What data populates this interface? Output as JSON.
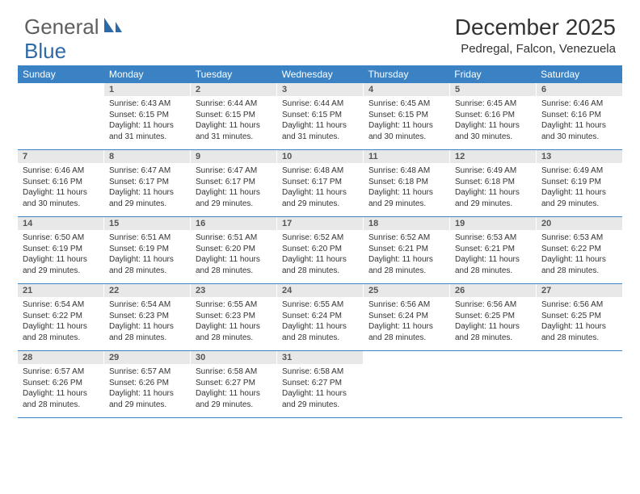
{
  "logo": {
    "text1": "General",
    "text2": "Blue",
    "color_gray": "#5f5f5f",
    "color_blue": "#2f6aa8"
  },
  "header": {
    "month_title": "December 2025",
    "location": "Pedregal, Falcon, Venezuela"
  },
  "colors": {
    "header_bg": "#3b82c4",
    "header_text": "#ffffff",
    "daynum_bg": "#e8e8e8",
    "daynum_text": "#555555",
    "body_text": "#333333",
    "row_border": "#3b82c4"
  },
  "weekdays": [
    "Sunday",
    "Monday",
    "Tuesday",
    "Wednesday",
    "Thursday",
    "Friday",
    "Saturday"
  ],
  "days": [
    {
      "n": 1,
      "sunrise": "6:43 AM",
      "sunset": "6:15 PM",
      "daylight": "11 hours and 31 minutes."
    },
    {
      "n": 2,
      "sunrise": "6:44 AM",
      "sunset": "6:15 PM",
      "daylight": "11 hours and 31 minutes."
    },
    {
      "n": 3,
      "sunrise": "6:44 AM",
      "sunset": "6:15 PM",
      "daylight": "11 hours and 31 minutes."
    },
    {
      "n": 4,
      "sunrise": "6:45 AM",
      "sunset": "6:15 PM",
      "daylight": "11 hours and 30 minutes."
    },
    {
      "n": 5,
      "sunrise": "6:45 AM",
      "sunset": "6:16 PM",
      "daylight": "11 hours and 30 minutes."
    },
    {
      "n": 6,
      "sunrise": "6:46 AM",
      "sunset": "6:16 PM",
      "daylight": "11 hours and 30 minutes."
    },
    {
      "n": 7,
      "sunrise": "6:46 AM",
      "sunset": "6:16 PM",
      "daylight": "11 hours and 30 minutes."
    },
    {
      "n": 8,
      "sunrise": "6:47 AM",
      "sunset": "6:17 PM",
      "daylight": "11 hours and 29 minutes."
    },
    {
      "n": 9,
      "sunrise": "6:47 AM",
      "sunset": "6:17 PM",
      "daylight": "11 hours and 29 minutes."
    },
    {
      "n": 10,
      "sunrise": "6:48 AM",
      "sunset": "6:17 PM",
      "daylight": "11 hours and 29 minutes."
    },
    {
      "n": 11,
      "sunrise": "6:48 AM",
      "sunset": "6:18 PM",
      "daylight": "11 hours and 29 minutes."
    },
    {
      "n": 12,
      "sunrise": "6:49 AM",
      "sunset": "6:18 PM",
      "daylight": "11 hours and 29 minutes."
    },
    {
      "n": 13,
      "sunrise": "6:49 AM",
      "sunset": "6:19 PM",
      "daylight": "11 hours and 29 minutes."
    },
    {
      "n": 14,
      "sunrise": "6:50 AM",
      "sunset": "6:19 PM",
      "daylight": "11 hours and 29 minutes."
    },
    {
      "n": 15,
      "sunrise": "6:51 AM",
      "sunset": "6:19 PM",
      "daylight": "11 hours and 28 minutes."
    },
    {
      "n": 16,
      "sunrise": "6:51 AM",
      "sunset": "6:20 PM",
      "daylight": "11 hours and 28 minutes."
    },
    {
      "n": 17,
      "sunrise": "6:52 AM",
      "sunset": "6:20 PM",
      "daylight": "11 hours and 28 minutes."
    },
    {
      "n": 18,
      "sunrise": "6:52 AM",
      "sunset": "6:21 PM",
      "daylight": "11 hours and 28 minutes."
    },
    {
      "n": 19,
      "sunrise": "6:53 AM",
      "sunset": "6:21 PM",
      "daylight": "11 hours and 28 minutes."
    },
    {
      "n": 20,
      "sunrise": "6:53 AM",
      "sunset": "6:22 PM",
      "daylight": "11 hours and 28 minutes."
    },
    {
      "n": 21,
      "sunrise": "6:54 AM",
      "sunset": "6:22 PM",
      "daylight": "11 hours and 28 minutes."
    },
    {
      "n": 22,
      "sunrise": "6:54 AM",
      "sunset": "6:23 PM",
      "daylight": "11 hours and 28 minutes."
    },
    {
      "n": 23,
      "sunrise": "6:55 AM",
      "sunset": "6:23 PM",
      "daylight": "11 hours and 28 minutes."
    },
    {
      "n": 24,
      "sunrise": "6:55 AM",
      "sunset": "6:24 PM",
      "daylight": "11 hours and 28 minutes."
    },
    {
      "n": 25,
      "sunrise": "6:56 AM",
      "sunset": "6:24 PM",
      "daylight": "11 hours and 28 minutes."
    },
    {
      "n": 26,
      "sunrise": "6:56 AM",
      "sunset": "6:25 PM",
      "daylight": "11 hours and 28 minutes."
    },
    {
      "n": 27,
      "sunrise": "6:56 AM",
      "sunset": "6:25 PM",
      "daylight": "11 hours and 28 minutes."
    },
    {
      "n": 28,
      "sunrise": "6:57 AM",
      "sunset": "6:26 PM",
      "daylight": "11 hours and 28 minutes."
    },
    {
      "n": 29,
      "sunrise": "6:57 AM",
      "sunset": "6:26 PM",
      "daylight": "11 hours and 29 minutes."
    },
    {
      "n": 30,
      "sunrise": "6:58 AM",
      "sunset": "6:27 PM",
      "daylight": "11 hours and 29 minutes."
    },
    {
      "n": 31,
      "sunrise": "6:58 AM",
      "sunset": "6:27 PM",
      "daylight": "11 hours and 29 minutes."
    }
  ],
  "first_weekday_index": 1,
  "labels": {
    "sunrise": "Sunrise: ",
    "sunset": "Sunset: ",
    "daylight": "Daylight: "
  }
}
